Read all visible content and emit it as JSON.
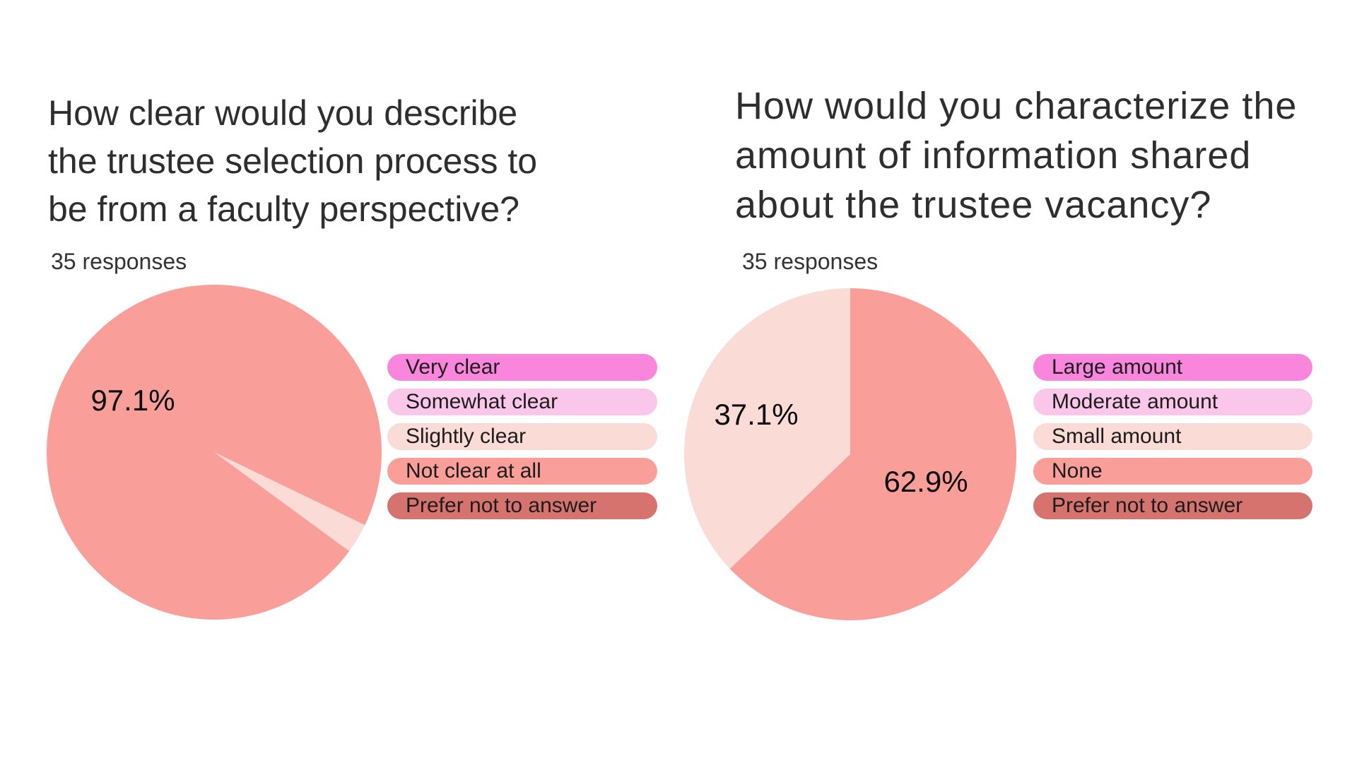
{
  "page": {
    "background_color": "#ffffff"
  },
  "charts": [
    {
      "title": "How clear would you describe\nthe trustee selection process to\nbe from a faculty perspective?",
      "responses_label": "35 responses",
      "legend": [
        {
          "label": "Very clear",
          "color": "#f986dc"
        },
        {
          "label": "Somewhat clear",
          "color": "#fac6ea"
        },
        {
          "label": "Slightly clear",
          "color": "#fadbd6"
        },
        {
          "label": "Not clear at all",
          "color": "#fa9e99"
        },
        {
          "label": "Prefer not to answer",
          "color": "#d7736e"
        }
      ],
      "pct_labels": {
        "primary": "97.1%"
      }
    },
    {
      "title": "How would you characterize the\namount of information shared\nabout the trustee vacancy?",
      "responses_label": "35 responses",
      "legend": [
        {
          "label": "Large amount",
          "color": "#f986dc"
        },
        {
          "label": "Moderate amount",
          "color": "#fac6ea"
        },
        {
          "label": "Small amount",
          "color": "#fadbd6"
        },
        {
          "label": "None",
          "color": "#fa9e99"
        },
        {
          "label": "Prefer not to answer",
          "color": "#d7736e"
        }
      ],
      "pct_labels": {
        "primary": "62.9%",
        "secondary": "37.1%"
      }
    }
  ],
  "chart_data": [
    {
      "type": "pie",
      "title": "How clear would you describe the trustee selection process to be from a faculty perspective?",
      "subtitle": "35 responses",
      "total_responses": 35,
      "categories": [
        "Very clear",
        "Somewhat clear",
        "Slightly clear",
        "Not clear at all",
        "Prefer not to answer"
      ],
      "values_pct": [
        0,
        0,
        2.9,
        97.1,
        0
      ],
      "colors": [
        "#f986dc",
        "#fac6ea",
        "#fadbd6",
        "#fa9e99",
        "#d7736e"
      ],
      "data_labels": [
        "97.1%"
      ],
      "legend_position": "right",
      "draw": {
        "start_deg": 115.8,
        "order": [
          2,
          3
        ]
      }
    },
    {
      "type": "pie",
      "title": "How would you characterize the amount of information shared about the trustee vacancy?",
      "subtitle": "35 responses",
      "total_responses": 35,
      "categories": [
        "Large amount",
        "Moderate amount",
        "Small amount",
        "None",
        "Prefer not to answer"
      ],
      "values_pct": [
        0,
        0,
        37.1,
        62.9,
        0
      ],
      "colors": [
        "#f986dc",
        "#fac6ea",
        "#fadbd6",
        "#fa9e99",
        "#d7736e"
      ],
      "data_labels": [
        "62.9%",
        "37.1%"
      ],
      "legend_position": "right",
      "draw": {
        "start_deg": 0,
        "order": [
          3,
          2
        ]
      }
    }
  ]
}
